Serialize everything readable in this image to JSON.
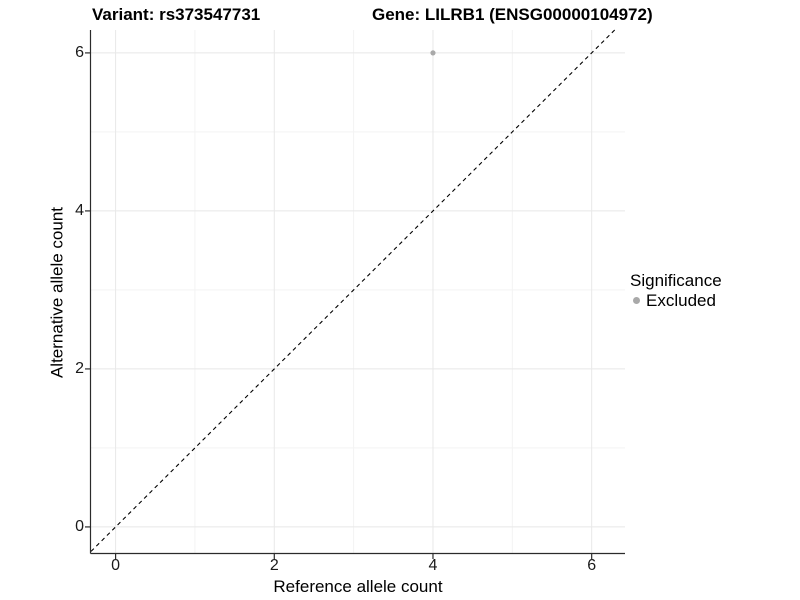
{
  "chart_data": {
    "type": "scatter",
    "titles": {
      "left": "Variant: rs373547731",
      "right": "Gene: LILRB1 (ENSG00000104972)"
    },
    "xlabel": "Reference allele count",
    "ylabel": "Alternative allele count",
    "xlim": [
      -0.31,
      6.42
    ],
    "ylim": [
      -0.33,
      6.29
    ],
    "x_ticks": [
      0,
      2,
      4,
      6
    ],
    "y_ticks": [
      0,
      2,
      4,
      6
    ],
    "x_minor_ticks": [
      1,
      3,
      5
    ],
    "y_minor_ticks": [
      1,
      3,
      5
    ],
    "grid": "major+minor",
    "points": [
      {
        "x": 4,
        "y": 6,
        "series": "Excluded"
      }
    ],
    "reference_line": {
      "kind": "identity",
      "style": "dashed",
      "color": "#000000"
    },
    "legend": {
      "title": "Significance",
      "position": "right",
      "items": [
        {
          "label": "Excluded",
          "color": "#a9a9a9"
        }
      ]
    },
    "colors": {
      "point": "#a9a9a9",
      "grid_major": "#e8e8e8",
      "grid_minor": "#f3f3f3",
      "axis_line": "#2b2b2b",
      "background": "#ffffff"
    }
  }
}
